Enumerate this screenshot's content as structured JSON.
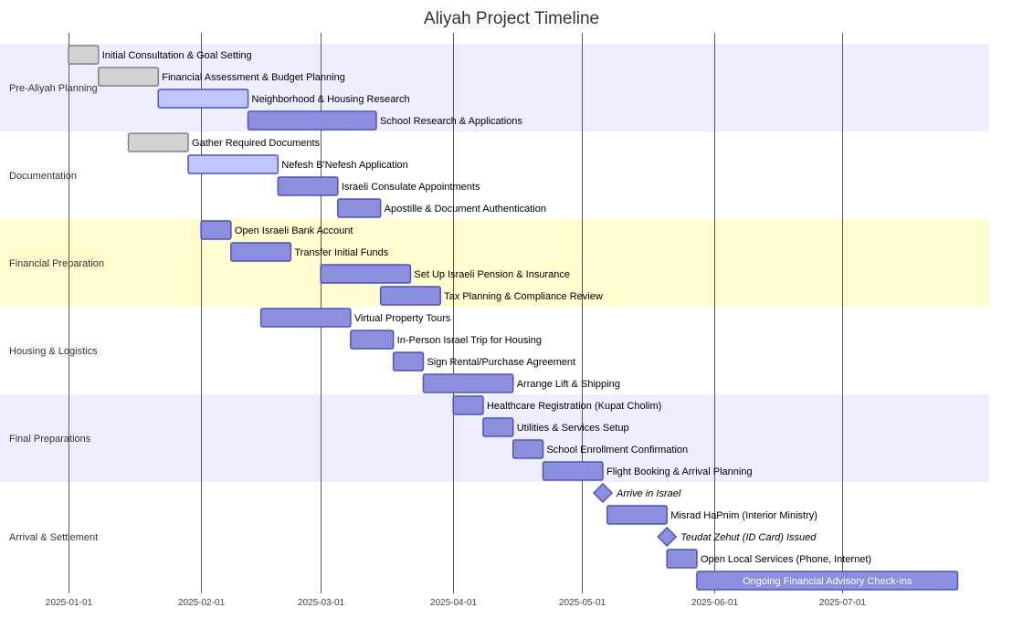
{
  "title": "Aliyah Project Timeline",
  "colors": {
    "band_purple": "#eeeeff",
    "band_yellow": "#fffccf",
    "task_active_fill": "#8a90dd",
    "task_active_stroke": "#534fbc",
    "task_future_fill": "#bfc7ff",
    "task_done_fill": "#d3d3d3",
    "task_done_stroke": "#808080",
    "gridline": "#333333"
  },
  "chart_data": {
    "type": "gantt",
    "x_axis": {
      "min": "2025-01-01",
      "max": "2025-07-31",
      "ticks": [
        "2025-01-01",
        "2025-02-01",
        "2025-03-01",
        "2025-04-01",
        "2025-05-01",
        "2025-06-01",
        "2025-07-01"
      ]
    },
    "sections": [
      {
        "name": "Pre-Aliyah Planning",
        "band": "band_purple"
      },
      {
        "name": "Documentation",
        "band": "none"
      },
      {
        "name": "Financial Preparation",
        "band": "band_yellow"
      },
      {
        "name": "Housing & Logistics",
        "band": "none"
      },
      {
        "name": "Final Preparations",
        "band": "band_purple"
      },
      {
        "name": "Arrival & Settlement",
        "band": "none"
      }
    ],
    "tasks": [
      {
        "section": 0,
        "name": "Initial Consultation & Goal Setting",
        "start": "2025-01-01",
        "end": "2025-01-08",
        "status": "done"
      },
      {
        "section": 0,
        "name": "Financial Assessment & Budget Planning",
        "start": "2025-01-08",
        "end": "2025-01-22",
        "status": "done"
      },
      {
        "section": 0,
        "name": "Neighborhood & Housing Research",
        "start": "2025-01-22",
        "end": "2025-02-12",
        "status": "future"
      },
      {
        "section": 0,
        "name": "School Research & Applications",
        "start": "2025-02-12",
        "end": "2025-03-14",
        "status": "active"
      },
      {
        "section": 1,
        "name": "Gather Required Documents",
        "start": "2025-01-15",
        "end": "2025-01-29",
        "status": "done"
      },
      {
        "section": 1,
        "name": "Nefesh B'Nefesh Application",
        "start": "2025-01-29",
        "end": "2025-02-19",
        "status": "future"
      },
      {
        "section": 1,
        "name": "Israeli Consulate Appointments",
        "start": "2025-02-19",
        "end": "2025-03-05",
        "status": "active"
      },
      {
        "section": 1,
        "name": "Apostille & Document Authentication",
        "start": "2025-03-05",
        "end": "2025-03-15",
        "status": "active"
      },
      {
        "section": 2,
        "name": "Open Israeli Bank Account",
        "start": "2025-02-01",
        "end": "2025-02-08",
        "status": "active"
      },
      {
        "section": 2,
        "name": "Transfer Initial Funds",
        "start": "2025-02-08",
        "end": "2025-02-22",
        "status": "active"
      },
      {
        "section": 2,
        "name": "Set Up Israeli Pension & Insurance",
        "start": "2025-03-01",
        "end": "2025-03-22",
        "status": "active"
      },
      {
        "section": 2,
        "name": "Tax Planning & Compliance Review",
        "start": "2025-03-15",
        "end": "2025-03-29",
        "status": "active"
      },
      {
        "section": 3,
        "name": "Virtual Property Tours",
        "start": "2025-02-15",
        "end": "2025-03-08",
        "status": "active"
      },
      {
        "section": 3,
        "name": "In-Person Israel Trip for Housing",
        "start": "2025-03-08",
        "end": "2025-03-18",
        "status": "active"
      },
      {
        "section": 3,
        "name": "Sign Rental/Purchase Agreement",
        "start": "2025-03-18",
        "end": "2025-03-25",
        "status": "active"
      },
      {
        "section": 3,
        "name": "Arrange Lift & Shipping",
        "start": "2025-03-25",
        "end": "2025-04-15",
        "status": "active"
      },
      {
        "section": 4,
        "name": "Healthcare Registration (Kupat Cholim)",
        "start": "2025-04-01",
        "end": "2025-04-08",
        "status": "active"
      },
      {
        "section": 4,
        "name": "Utilities & Services Setup",
        "start": "2025-04-08",
        "end": "2025-04-15",
        "status": "active"
      },
      {
        "section": 4,
        "name": "School Enrollment Confirmation",
        "start": "2025-04-15",
        "end": "2025-04-22",
        "status": "active"
      },
      {
        "section": 4,
        "name": "Flight Booking & Arrival Planning",
        "start": "2025-04-22",
        "end": "2025-05-06",
        "status": "active"
      },
      {
        "section": 5,
        "name": "Arrive in Israel",
        "start": "2025-05-06",
        "end": "2025-05-06",
        "status": "milestone"
      },
      {
        "section": 5,
        "name": "Misrad HaPnim (Interior Ministry)",
        "start": "2025-05-07",
        "end": "2025-05-21",
        "status": "active"
      },
      {
        "section": 5,
        "name": "Teudat Zehut (ID Card) Issued",
        "start": "2025-05-21",
        "end": "2025-05-21",
        "status": "milestone"
      },
      {
        "section": 5,
        "name": "Open Local Services (Phone, Internet)",
        "start": "2025-05-21",
        "end": "2025-05-28",
        "status": "active"
      },
      {
        "section": 5,
        "name": "Ongoing Financial Advisory Check-ins",
        "start": "2025-05-28",
        "end": "2025-07-28",
        "status": "active"
      }
    ]
  }
}
